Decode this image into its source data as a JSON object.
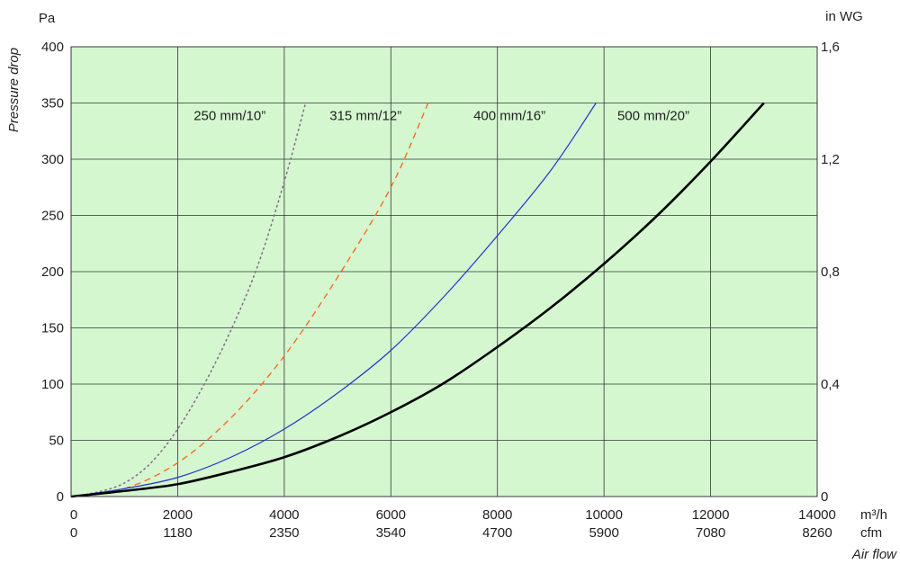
{
  "chart_data": {
    "type": "line",
    "title": "",
    "ylabel": "Pressure drop",
    "xlabel": "Air flow",
    "y_unit_left": "Pa",
    "y_unit_right": "in WG",
    "x_unit_primary": "m³/h",
    "x_unit_secondary": "cfm",
    "xlim": [
      0,
      14000
    ],
    "ylim": [
      0,
      400
    ],
    "grid": true,
    "background_color": "#d4f7d0",
    "x_ticks": [
      {
        "value": 0,
        "label": "0",
        "cfm": "0"
      },
      {
        "value": 2000,
        "label": "2000",
        "cfm": "1180"
      },
      {
        "value": 4000,
        "label": "4000",
        "cfm": "2350"
      },
      {
        "value": 6000,
        "label": "6000",
        "cfm": "3540"
      },
      {
        "value": 8000,
        "label": "8000",
        "cfm": "4700"
      },
      {
        "value": 10000,
        "label": "10000",
        "cfm": "5900"
      },
      {
        "value": 12000,
        "label": "12000",
        "cfm": "7080"
      },
      {
        "value": 14000,
        "label": "14000",
        "cfm": "8260"
      }
    ],
    "y_ticks_left": [
      {
        "value": 0,
        "label": "0"
      },
      {
        "value": 50,
        "label": "50"
      },
      {
        "value": 100,
        "label": "100"
      },
      {
        "value": 150,
        "label": "150"
      },
      {
        "value": 200,
        "label": "200"
      },
      {
        "value": 250,
        "label": "250"
      },
      {
        "value": 300,
        "label": "300"
      },
      {
        "value": 350,
        "label": "350"
      },
      {
        "value": 400,
        "label": "400"
      }
    ],
    "y_ticks_right": [
      {
        "value": 0,
        "label": "0"
      },
      {
        "value": 100,
        "label": "0,4"
      },
      {
        "value": 200,
        "label": "0,8"
      },
      {
        "value": 300,
        "label": "1,2"
      },
      {
        "value": 400,
        "label": "1,6"
      }
    ],
    "series": [
      {
        "name": "250 mm/10”",
        "color": "#8a6f8a",
        "style": "dotted",
        "width": 1.6,
        "points": [
          [
            0,
            0
          ],
          [
            500,
            4
          ],
          [
            1000,
            12
          ],
          [
            1500,
            30
          ],
          [
            2000,
            60
          ],
          [
            2500,
            100
          ],
          [
            3000,
            148
          ],
          [
            3500,
            205
          ],
          [
            4000,
            280
          ],
          [
            4400,
            350
          ]
        ]
      },
      {
        "name": "315 mm/12”",
        "color": "#ff6a1a",
        "style": "dashed",
        "width": 1.4,
        "points": [
          [
            0,
            0
          ],
          [
            1000,
            7
          ],
          [
            2000,
            30
          ],
          [
            3000,
            70
          ],
          [
            4000,
            125
          ],
          [
            5000,
            195
          ],
          [
            6000,
            275
          ],
          [
            6700,
            350
          ]
        ]
      },
      {
        "name": "400 mm/16”",
        "color": "#2233cc",
        "style": "solid",
        "width": 1.2,
        "points": [
          [
            0,
            0
          ],
          [
            1000,
            7
          ],
          [
            2000,
            17
          ],
          [
            3000,
            35
          ],
          [
            4000,
            60
          ],
          [
            5000,
            92
          ],
          [
            6000,
            130
          ],
          [
            7000,
            178
          ],
          [
            8000,
            232
          ],
          [
            9000,
            290
          ],
          [
            9850,
            350
          ]
        ]
      },
      {
        "name": "500 mm/20”",
        "color": "#000000",
        "style": "solid",
        "width": 2.6,
        "points": [
          [
            0,
            0
          ],
          [
            1000,
            5
          ],
          [
            2000,
            11
          ],
          [
            3000,
            22
          ],
          [
            4000,
            35
          ],
          [
            5000,
            53
          ],
          [
            6000,
            75
          ],
          [
            7000,
            101
          ],
          [
            8000,
            133
          ],
          [
            9000,
            168
          ],
          [
            10000,
            207
          ],
          [
            11000,
            250
          ],
          [
            12000,
            298
          ],
          [
            13000,
            350
          ]
        ]
      }
    ],
    "series_labels": [
      {
        "text": "250 mm/10”",
        "x": 2300,
        "y": 335
      },
      {
        "text": "315 mm/12”",
        "x": 4850,
        "y": 335
      },
      {
        "text": "400 mm/16”",
        "x": 7550,
        "y": 335
      },
      {
        "text": "500 mm/20”",
        "x": 10250,
        "y": 335
      }
    ]
  }
}
